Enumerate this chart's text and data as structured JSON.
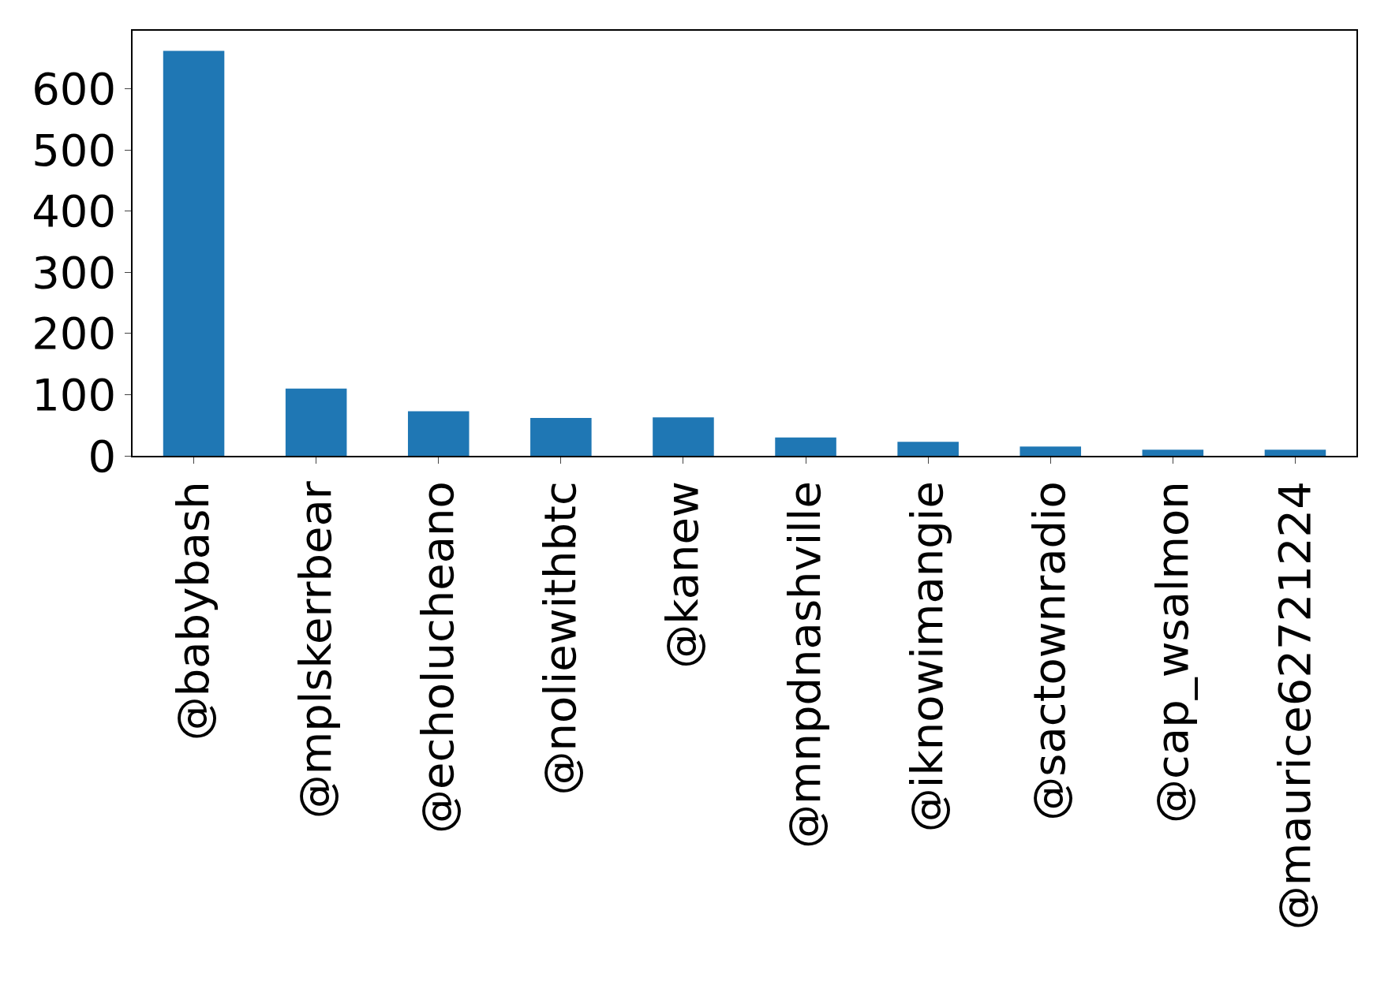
{
  "chart_data": {
    "type": "bar",
    "categories": [
      "@babybash",
      "@mplskerrbear",
      "@echolucheano",
      "@noliewithbtc",
      "@kanew",
      "@mnpdnashville",
      "@iknowimangie",
      "@sactownradio",
      "@cap_wsalmon",
      "@maurice62721224"
    ],
    "values": [
      662,
      110,
      73,
      62,
      63,
      30,
      23,
      15,
      10,
      10
    ],
    "color": "#1f77b4",
    "ylim": [
      0,
      695
    ],
    "yticks": [
      0,
      100,
      200,
      300,
      400,
      500,
      600
    ],
    "grid": false
  }
}
